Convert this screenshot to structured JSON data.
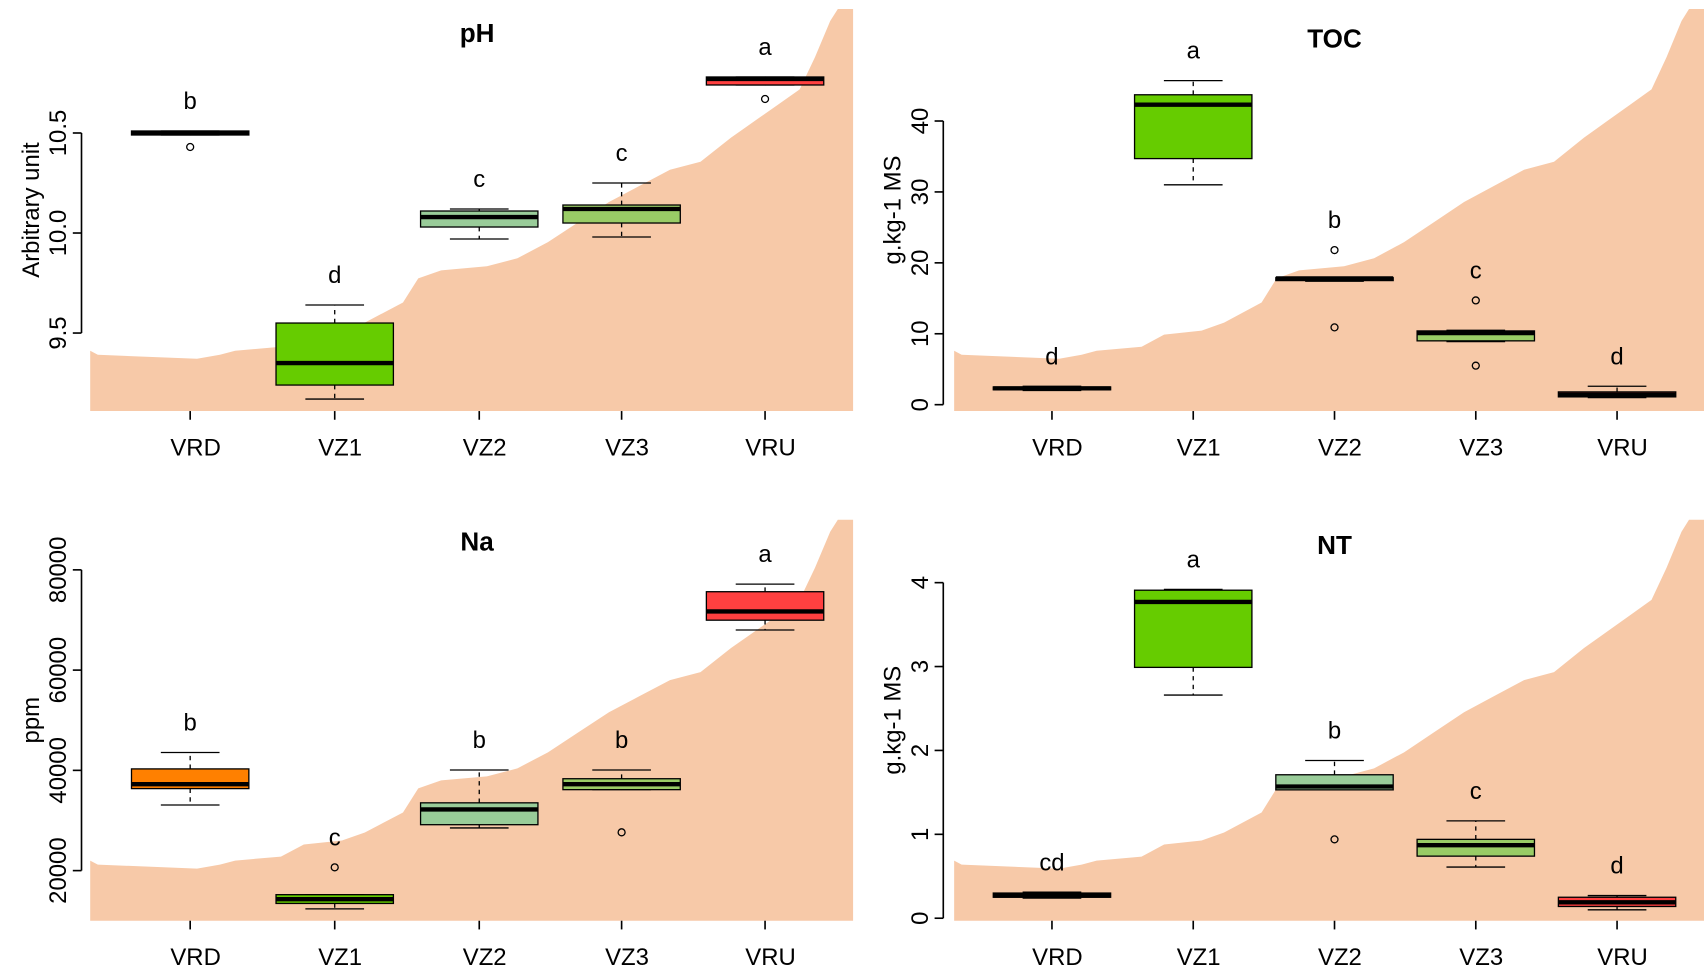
{
  "chart_data": [
    {
      "type": "box",
      "title": "pH",
      "y_label": "Arbitrary unit",
      "categories": [
        "VRD",
        "VZ1",
        "VZ2",
        "VZ3",
        "VRU"
      ],
      "ylim": [
        9.11,
        11.12
      ],
      "yticks": [
        9.5,
        {
          "value": 10,
          "label": "10.0"
        },
        10.5
      ],
      "boxes": [
        {
          "min": 10.49,
          "q1": 10.49,
          "median": 10.5,
          "q3": 10.51,
          "max": 10.51,
          "outliers": [
            10.43
          ],
          "color": "#ff8000",
          "letter": "b"
        },
        {
          "min": 9.17,
          "q1": 9.24,
          "median": 9.35,
          "q3": 9.55,
          "max": 9.64,
          "outliers": [],
          "color": "#66cc00",
          "letter": "d"
        },
        {
          "min": 9.97,
          "q1": 10.03,
          "median": 10.08,
          "q3": 10.11,
          "max": 10.12,
          "outliers": [],
          "color": "#99cc99",
          "letter": "c"
        },
        {
          "min": 9.98,
          "q1": 10.05,
          "median": 10.12,
          "q3": 10.14,
          "max": 10.25,
          "outliers": [],
          "color": "#99cc66",
          "letter": "c"
        },
        {
          "min": 10.74,
          "q1": 10.74,
          "median": 10.77,
          "q3": 10.78,
          "max": 10.78,
          "outliers": [
            10.67
          ],
          "color": "#ff4040",
          "letter": "a"
        }
      ]
    },
    {
      "type": "box",
      "title": "TOC",
      "y_label": "g.kg-1 MS",
      "categories": [
        "VRD",
        "VZ1",
        "VZ2",
        "VZ3",
        "VRU"
      ],
      "ylim": [
        -0.9,
        55.8
      ],
      "yticks": [
        0,
        10,
        20,
        30,
        40
      ],
      "boxes": [
        {
          "min": 2.0,
          "q1": 2.1,
          "median": 2.3,
          "q3": 2.5,
          "max": 2.6,
          "outliers": [],
          "color": "#ff8000",
          "letter": "d"
        },
        {
          "min": 31.0,
          "q1": 34.7,
          "median": 42.3,
          "q3": 43.7,
          "max": 45.7,
          "outliers": [],
          "color": "#66cc00",
          "letter": "a"
        },
        {
          "min": 17.4,
          "q1": 17.5,
          "median": 17.8,
          "q3": 17.9,
          "max": 17.9,
          "outliers": [
            21.8,
            10.9
          ],
          "color": "#99cc99",
          "letter": "b"
        },
        {
          "min": 8.9,
          "q1": 9.0,
          "median": 10.1,
          "q3": 10.4,
          "max": 10.5,
          "outliers": [
            14.7,
            5.5
          ],
          "color": "#99cc66",
          "letter": "c"
        },
        {
          "min": 1.0,
          "q1": 1.1,
          "median": 1.4,
          "q3": 1.8,
          "max": 2.6,
          "outliers": [],
          "color": "#ff4040",
          "letter": "d"
        }
      ]
    },
    {
      "type": "box",
      "title": "Na",
      "y_label": "ppm",
      "categories": [
        "VRD",
        "VZ1",
        "VZ2",
        "VZ3",
        "VRU"
      ],
      "ylim": [
        10000,
        90000
      ],
      "yticks": [
        20000,
        40000,
        60000,
        80000
      ],
      "boxes": [
        {
          "min": 33090,
          "q1": 36360,
          "median": 37240,
          "q3": 40290,
          "max": 43560,
          "outliers": [],
          "color": "#ff8000",
          "letter": "b"
        },
        {
          "min": 12360,
          "q1": 13450,
          "median": 14300,
          "q3": 15200,
          "max": 15200,
          "outliers": [
            20650
          ],
          "color": "#66cc00",
          "letter": "c"
        },
        {
          "min": 28510,
          "q1": 29160,
          "median": 32210,
          "q3": 33520,
          "max": 40070,
          "outliers": [],
          "color": "#99cc99",
          "letter": "b"
        },
        {
          "min": 36150,
          "q1": 36150,
          "median": 37240,
          "q3": 38330,
          "max": 40070,
          "outliers": [
            27640
          ],
          "color": "#99cc66",
          "letter": "b"
        },
        {
          "min": 68000,
          "q1": 69960,
          "median": 71710,
          "q3": 75640,
          "max": 77160,
          "outliers": [],
          "color": "#ff4040",
          "letter": "a"
        }
      ]
    },
    {
      "type": "box",
      "title": "NT",
      "y_label": "g.kg-1 MS",
      "categories": [
        "VRD",
        "VZ1",
        "VZ2",
        "VZ3",
        "VRU"
      ],
      "ylim": [
        -0.03,
        4.75
      ],
      "yticks": [
        0,
        1,
        2,
        3,
        4
      ],
      "boxes": [
        {
          "min": 0.24,
          "q1": 0.25,
          "median": 0.27,
          "q3": 0.3,
          "max": 0.31,
          "outliers": [],
          "color": "#ff8000",
          "letter": "cd"
        },
        {
          "min": 2.66,
          "q1": 2.99,
          "median": 3.77,
          "q3": 3.91,
          "max": 3.92,
          "outliers": [],
          "color": "#66cc00",
          "letter": "a"
        },
        {
          "min": 1.53,
          "q1": 1.53,
          "median": 1.57,
          "q3": 1.71,
          "max": 1.88,
          "outliers": [
            0.94
          ],
          "color": "#99cc99",
          "letter": "b"
        },
        {
          "min": 0.61,
          "q1": 0.74,
          "median": 0.87,
          "q3": 0.94,
          "max": 1.16,
          "outliers": [],
          "color": "#99cc66",
          "letter": "c"
        },
        {
          "min": 0.1,
          "q1": 0.14,
          "median": 0.19,
          "q3": 0.25,
          "max": 0.27,
          "outliers": [],
          "color": "#ff4040",
          "letter": "d"
        }
      ]
    }
  ]
}
